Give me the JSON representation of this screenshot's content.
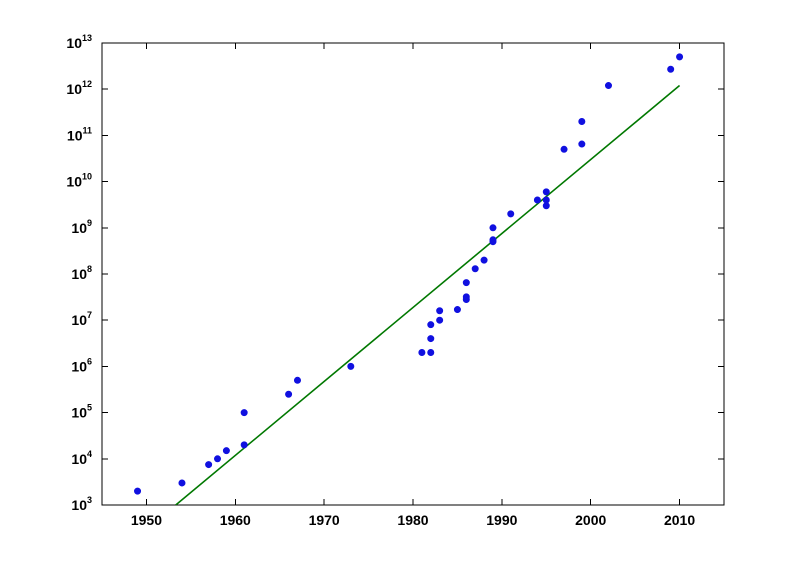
{
  "chart_data": {
    "type": "scatter",
    "title": "",
    "xlabel": "",
    "ylabel": "",
    "xlim": [
      1945,
      2015
    ],
    "ylim": [
      1000,
      10000000000000
    ],
    "y_scale": "log",
    "grid": false,
    "x_ticks": [
      1950,
      1960,
      1970,
      1980,
      1990,
      2000,
      2010
    ],
    "y_ticks": [
      {
        "value": 1000,
        "base": "10",
        "exp": "3"
      },
      {
        "value": 10000,
        "base": "10",
        "exp": "4"
      },
      {
        "value": 100000,
        "base": "10",
        "exp": "5"
      },
      {
        "value": 1000000,
        "base": "10",
        "exp": "6"
      },
      {
        "value": 10000000,
        "base": "10",
        "exp": "7"
      },
      {
        "value": 100000000,
        "base": "10",
        "exp": "8"
      },
      {
        "value": 1000000000,
        "base": "10",
        "exp": "9"
      },
      {
        "value": 10000000000,
        "base": "10",
        "exp": "10"
      },
      {
        "value": 100000000000,
        "base": "10",
        "exp": "11"
      },
      {
        "value": 1000000000000,
        "base": "10",
        "exp": "12"
      },
      {
        "value": 10000000000000,
        "base": "10",
        "exp": "13"
      }
    ],
    "series": [
      {
        "kind": "scatter",
        "color": "#1010e0",
        "points": [
          [
            1949,
            2000
          ],
          [
            1954,
            3000
          ],
          [
            1957,
            7500
          ],
          [
            1958,
            10000
          ],
          [
            1959,
            15000
          ],
          [
            1961,
            100000
          ],
          [
            1961,
            20000
          ],
          [
            1966,
            250000
          ],
          [
            1967,
            500000
          ],
          [
            1973,
            1000000
          ],
          [
            1981,
            2000000
          ],
          [
            1982,
            2000000
          ],
          [
            1982,
            4000000
          ],
          [
            1982,
            8000000
          ],
          [
            1983,
            10000000
          ],
          [
            1983,
            16000000
          ],
          [
            1985,
            17000000
          ],
          [
            1986,
            28000000
          ],
          [
            1986,
            32000000
          ],
          [
            1986,
            65000000
          ],
          [
            1987,
            130000000
          ],
          [
            1988,
            200000000
          ],
          [
            1989,
            500000000
          ],
          [
            1989,
            550000000
          ],
          [
            1989,
            1000000000
          ],
          [
            1991,
            2000000000
          ],
          [
            1994,
            4000000000
          ],
          [
            1995,
            3000000000
          ],
          [
            1995,
            4000000000
          ],
          [
            1995,
            6000000000
          ],
          [
            1997,
            50000000000
          ],
          [
            1999,
            65000000000
          ],
          [
            1999,
            200000000000
          ],
          [
            2002,
            1200000000000
          ],
          [
            2009,
            2700000000000
          ],
          [
            2010,
            5000000000000
          ]
        ]
      },
      {
        "kind": "line",
        "color": "#007800",
        "points": [
          [
            1953.3,
            1000
          ],
          [
            2010,
            1200000000000
          ]
        ]
      }
    ]
  }
}
